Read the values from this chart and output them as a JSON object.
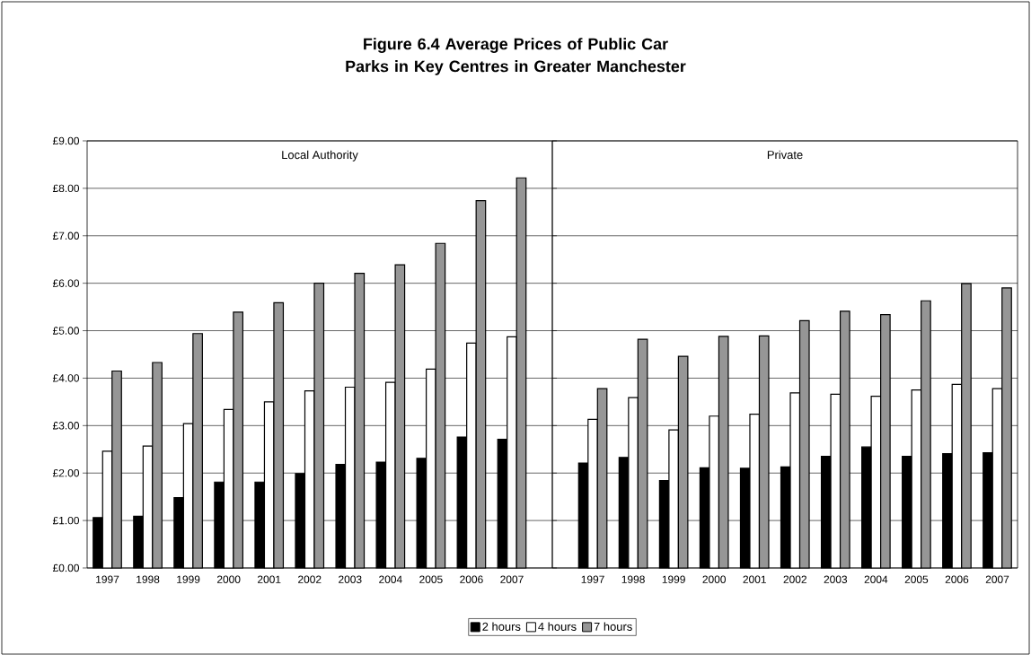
{
  "chart_data": [
    {
      "type": "bar",
      "title": "Figure 6.4 Average Prices of Public Car Parks in Key Centres in Greater Manchester",
      "annotations": [
        "Local Authority"
      ],
      "categories": [
        "1997",
        "1998",
        "1999",
        "2000",
        "2001",
        "2002",
        "2003",
        "2004",
        "2005",
        "2006",
        "2007"
      ],
      "series": [
        {
          "name": "2 hours",
          "color": "#000000",
          "values": [
            1.06,
            1.09,
            1.48,
            1.81,
            1.81,
            1.99,
            2.18,
            2.23,
            2.31,
            2.76,
            2.71
          ]
        },
        {
          "name": "4 hours",
          "color": "#ffffff",
          "values": [
            2.46,
            2.57,
            3.04,
            3.34,
            3.5,
            3.73,
            3.81,
            3.91,
            4.19,
            4.74,
            4.87
          ]
        },
        {
          "name": "7 hours",
          "color": "#969696",
          "values": [
            4.15,
            4.33,
            4.94,
            5.39,
            5.59,
            6.0,
            6.21,
            6.39,
            6.84,
            7.74,
            8.22
          ]
        }
      ],
      "ylim": [
        0,
        9
      ],
      "yticks": [
        {
          "value": 0,
          "label": "£0.00"
        },
        {
          "value": 1,
          "label": "£1.00"
        },
        {
          "value": 2,
          "label": "£2.00"
        },
        {
          "value": 3,
          "label": "£3.00"
        },
        {
          "value": 4,
          "label": "£4.00"
        },
        {
          "value": 5,
          "label": "£5.00"
        },
        {
          "value": 6,
          "label": "£6.00"
        },
        {
          "value": 7,
          "label": "£7.00"
        },
        {
          "value": 8,
          "label": "£8.00"
        },
        {
          "value": 9,
          "label": "£9.00"
        }
      ],
      "grid": "y",
      "legend": "bottom"
    },
    {
      "type": "bar",
      "annotations": [
        "Private"
      ],
      "categories": [
        "1997",
        "1998",
        "1999",
        "2000",
        "2001",
        "2002",
        "2003",
        "2004",
        "2005",
        "2006",
        "2007"
      ],
      "series": [
        {
          "color": "#000000",
          "values": [
            2.21,
            2.33,
            1.84,
            2.11,
            2.1,
            2.13,
            2.35,
            2.55,
            2.35,
            2.41,
            2.43
          ]
        },
        {
          "color": "#ffffff",
          "values": [
            3.13,
            3.59,
            2.91,
            3.2,
            3.24,
            3.69,
            3.66,
            3.62,
            3.75,
            3.87,
            3.78
          ]
        },
        {
          "color": "#969696",
          "values": [
            3.78,
            4.82,
            4.46,
            4.88,
            4.89,
            5.21,
            5.41,
            5.34,
            5.63,
            5.99,
            5.9
          ]
        }
      ],
      "ylim": [
        0,
        9
      ],
      "yticks": [
        0,
        1,
        2,
        3,
        4,
        5,
        6,
        7,
        8,
        9
      ],
      "grid": "y",
      "tick_labels": "x"
    }
  ]
}
